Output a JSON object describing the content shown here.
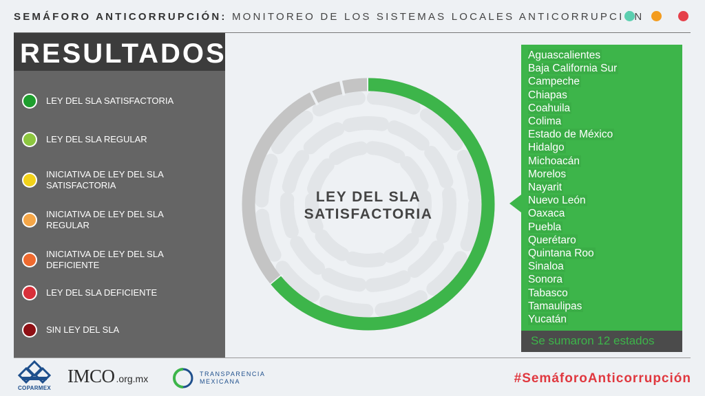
{
  "header": {
    "title_bold": "SEMÁFORO ANTICORRUPCIÓN:",
    "title_rest": " MONITOREO DE LOS SISTEMAS LOCALES ANTICORRUPCIÓN",
    "dot_colors": [
      "#5ccfb0",
      "#f39c1f",
      "#e5404a"
    ]
  },
  "sidebar": {
    "title": "RESULTADOS",
    "legend": [
      {
        "label": "LEY DEL SLA SATISFACTORIA",
        "color": "#1e9e2e"
      },
      {
        "label": "LEY DEL SLA REGULAR",
        "color": "#8cc63f"
      },
      {
        "label": "INICIATIVA DE LEY DEL SLA SATISFACTORIA",
        "color": "#f2d21a"
      },
      {
        "label": "INICIATIVA DE LEY DEL SLA REGULAR",
        "color": "#f5a647"
      },
      {
        "label": "INICIATIVA DE LEY DEL SLA DEFICIENTE",
        "color": "#ef6a2f"
      },
      {
        "label": "LEY DEL SLA DEFICIENTE",
        "color": "#d8303a"
      },
      {
        "label": "SIN LEY DEL SLA",
        "color": "#8e1015"
      }
    ]
  },
  "ring": {
    "center_line1": "LEY DEL SLA",
    "center_line2": "SATISFACTORIA",
    "highlight_color": "#3db54a",
    "rest_color": "#c4c4c4",
    "highlight_fraction": 0.64
  },
  "states": {
    "items": [
      "Aguascalientes",
      "Baja California Sur",
      "Campeche",
      "Chiapas",
      "Coahuila",
      "Colima",
      "Estado de México",
      "Hidalgo",
      "Michoacán",
      "Morelos",
      "Nayarit",
      "Nuevo León",
      "Oaxaca",
      "Puebla",
      "Querétaro",
      "Quintana Roo",
      "Sinaloa",
      "Sonora",
      "Tabasco",
      "Tamaulipas",
      "Yucatán"
    ],
    "footer": "Se sumaron 12 estados"
  },
  "footer": {
    "coparmex": "COPARMEX",
    "imco": "IMCO",
    "imco_suffix": ".org.mx",
    "tm_line1": "TRANSPARENCIA",
    "tm_line2": "MEXICANA",
    "hashtag": "#SemáforoAnticorrupción"
  }
}
